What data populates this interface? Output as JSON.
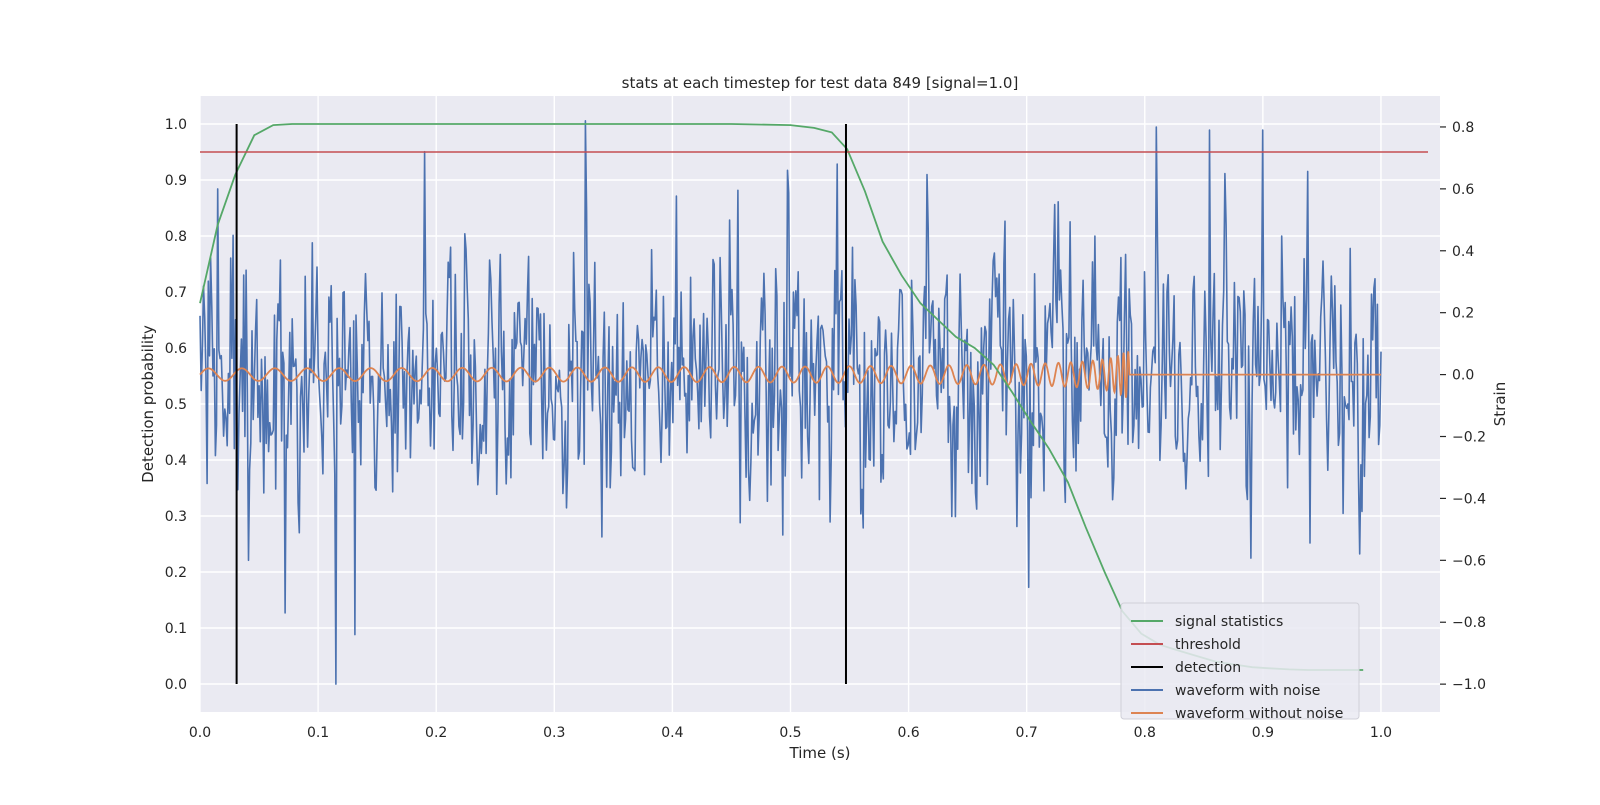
{
  "chart_data": {
    "type": "line",
    "title": "stats at each timestep for test data 849 [signal=1.0]",
    "xlabel": "Time (s)",
    "ylabel": "Detection probability",
    "ylabel_right": "Strain",
    "xlim": [
      0.0,
      1.05
    ],
    "ylim": [
      -0.05,
      1.05
    ],
    "ylim_right": [
      -1.09,
      0.9
    ],
    "xticks": [
      0.0,
      0.1,
      0.2,
      0.3,
      0.4,
      0.5,
      0.6,
      0.7,
      0.8,
      0.9,
      1.0
    ],
    "xtick_labels": [
      "0.0",
      "0.1",
      "0.2",
      "0.3",
      "0.4",
      "0.5",
      "0.6",
      "0.7",
      "0.8",
      "0.9",
      "1.0"
    ],
    "yticks": [
      0.0,
      0.1,
      0.2,
      0.3,
      0.4,
      0.5,
      0.6,
      0.7,
      0.8,
      0.9,
      1.0
    ],
    "ytick_labels": [
      "0.0",
      "0.1",
      "0.2",
      "0.3",
      "0.4",
      "0.5",
      "0.6",
      "0.7",
      "0.8",
      "0.9",
      "1.0"
    ],
    "yticks_right": [
      -1.0,
      -0.8,
      -0.6,
      -0.4,
      -0.2,
      0.0,
      0.2,
      0.4,
      0.6,
      0.8
    ],
    "ytick_labels_right": [
      "−1.0",
      "−0.8",
      "−0.6",
      "−0.4",
      "−0.2",
      "0.0",
      "0.2",
      "0.4",
      "0.6",
      "0.8"
    ],
    "grid": true,
    "legend_position": "lower-right",
    "colors": {
      "signal_statistics": "#55a868",
      "threshold": "#c44e52",
      "detection": "#000000",
      "waveform_with_noise": "#4c72b0",
      "waveform_without_noise": "#dd8452",
      "axes_background": "#eaeaf2",
      "grid": "#ffffff"
    },
    "series": [
      {
        "name": "signal statistics",
        "axis": "left",
        "x": [
          0.0,
          0.015,
          0.03,
          0.046,
          0.062,
          0.078,
          0.1,
          0.2,
          0.3,
          0.4,
          0.45,
          0.5,
          0.52,
          0.535,
          0.548,
          0.563,
          0.578,
          0.594,
          0.61,
          0.625,
          0.64,
          0.656,
          0.672,
          0.688,
          0.703,
          0.719,
          0.735,
          0.75,
          0.766,
          0.781,
          0.797,
          0.813,
          0.828,
          0.844,
          0.86,
          0.875,
          0.891,
          0.906,
          0.922,
          0.938,
          0.953,
          0.969,
          0.985
        ],
        "values": [
          0.68,
          0.82,
          0.91,
          0.98,
          0.998,
          1.0,
          1.0,
          1.0,
          1.0,
          1.0,
          1.0,
          0.998,
          0.993,
          0.985,
          0.955,
          0.88,
          0.79,
          0.73,
          0.68,
          0.65,
          0.62,
          0.6,
          0.57,
          0.52,
          0.47,
          0.42,
          0.36,
          0.28,
          0.2,
          0.13,
          0.09,
          0.07,
          0.06,
          0.05,
          0.04,
          0.035,
          0.03,
          0.028,
          0.026,
          0.025,
          0.025,
          0.025,
          0.025
        ]
      },
      {
        "name": "threshold",
        "axis": "left",
        "value": 0.95
      },
      {
        "name": "detection",
        "axis": "left",
        "x": [
          0.031,
          0.547
        ],
        "y_range": [
          0.0,
          1.0
        ]
      },
      {
        "name": "waveform with noise",
        "axis": "right",
        "x_range": [
          0.0,
          1.0
        ],
        "n_points": 1000,
        "std_estimate": 0.2,
        "peaks": [
          {
            "x": 0.0,
            "y": 0.19
          },
          {
            "x": 0.015,
            "y": 0.6
          },
          {
            "x": 0.028,
            "y": 0.45
          },
          {
            "x": 0.038,
            "y": -0.2
          },
          {
            "x": 0.041,
            "y": -0.6
          },
          {
            "x": 0.072,
            "y": -0.77
          },
          {
            "x": 0.115,
            "y": -1.0
          },
          {
            "x": 0.131,
            "y": -0.84
          },
          {
            "x": 0.19,
            "y": 0.72
          },
          {
            "x": 0.326,
            "y": 0.82
          },
          {
            "x": 0.54,
            "y": 0.68
          },
          {
            "x": 0.81,
            "y": 0.8
          },
          {
            "x": 0.855,
            "y": 0.79
          },
          {
            "x": 0.9,
            "y": 0.79
          }
        ]
      },
      {
        "name": "waveform without noise",
        "axis": "right",
        "x_range": [
          0.0,
          1.0
        ],
        "merger_time": 0.787,
        "initial_amplitude": 0.02,
        "final_amplitude": 0.1,
        "initial_frequency_hz": 35,
        "final_frequency_hz": 260
      }
    ],
    "legend": [
      "signal statistics",
      "threshold",
      "detection",
      "waveform with noise",
      "waveform without noise"
    ]
  }
}
